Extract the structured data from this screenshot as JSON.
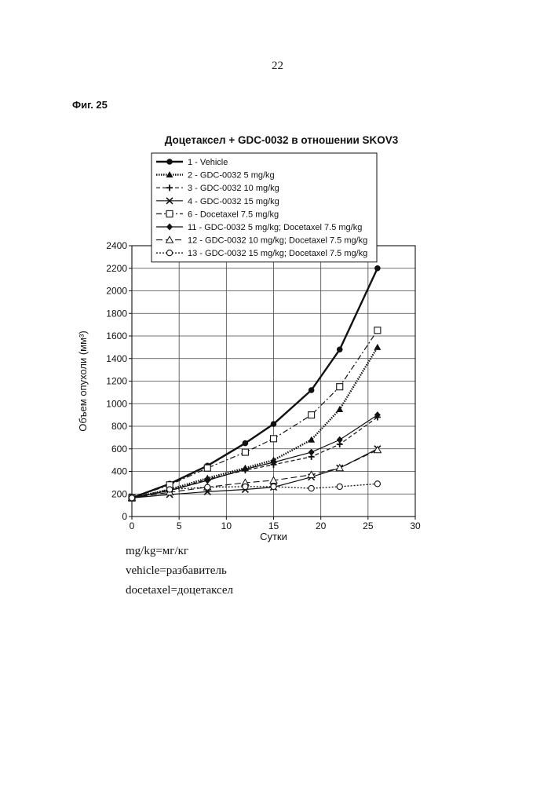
{
  "page_number": "22",
  "figure_label": "Фиг. 25",
  "notes": [
    "mg/kg=мг/кг",
    "vehicle=разбавитель",
    "docetaxel=доцетаксел"
  ],
  "chart_data": {
    "type": "line",
    "title": "Доцетаксел + GDC-0032 в отношении SKOV3",
    "xlabel": "Сутки",
    "ylabel": "Объем опухоли (мм³)",
    "xlim": [
      0,
      30
    ],
    "ylim": [
      0,
      2400
    ],
    "xticks": [
      0,
      5,
      10,
      15,
      20,
      25,
      30
    ],
    "yticks": [
      0,
      200,
      400,
      600,
      800,
      1000,
      1200,
      1400,
      1600,
      1800,
      2000,
      2200,
      2400
    ],
    "grid": true,
    "legend_position": "top",
    "series": [
      {
        "name": "1 - Vehicle",
        "marker": "filled-circle",
        "line": "solid-bold",
        "x": [
          0,
          4,
          8,
          12,
          15,
          19,
          22,
          26
        ],
        "y": [
          165,
          290,
          450,
          650,
          820,
          1120,
          1480,
          2200
        ]
      },
      {
        "name": "2 - GDC-0032 5 mg/kg",
        "marker": "filled-triangle",
        "line": "dotted-bold",
        "x": [
          0,
          4,
          8,
          12,
          15,
          19,
          22,
          26
        ],
        "y": [
          165,
          240,
          340,
          430,
          500,
          680,
          950,
          1500
        ]
      },
      {
        "name": "3 - GDC-0032 10 mg/kg",
        "marker": "plus",
        "line": "dashed",
        "x": [
          0,
          4,
          8,
          12,
          15,
          19,
          22,
          26
        ],
        "y": [
          165,
          230,
          330,
          410,
          460,
          530,
          640,
          880
        ]
      },
      {
        "name": "4 - GDC-0032 15 mg/kg",
        "marker": "x",
        "line": "solid",
        "x": [
          0,
          4,
          8,
          12,
          15,
          19,
          22,
          26
        ],
        "y": [
          165,
          195,
          220,
          240,
          260,
          350,
          430,
          600
        ]
      },
      {
        "name": "6 - Docetaxel 7.5 mg/kg",
        "marker": "open-square",
        "line": "dashdot",
        "x": [
          0,
          4,
          8,
          12,
          15,
          19,
          22,
          26
        ],
        "y": [
          165,
          280,
          430,
          570,
          690,
          900,
          1150,
          1650
        ]
      },
      {
        "name": "11 - GDC-0032 5 mg/kg; Docetaxel 7.5 mg/kg",
        "marker": "filled-diamond",
        "line": "solid",
        "x": [
          0,
          4,
          8,
          12,
          15,
          19,
          22,
          26
        ],
        "y": [
          165,
          230,
          320,
          420,
          480,
          570,
          680,
          900
        ]
      },
      {
        "name": "12 - GDC-0032 10 mg/kg; Docetaxel 7.5 mg/kg",
        "marker": "open-triangle",
        "line": "long-dashed",
        "x": [
          0,
          4,
          8,
          12,
          15,
          19,
          22,
          26
        ],
        "y": [
          165,
          215,
          260,
          300,
          320,
          370,
          430,
          590
        ]
      },
      {
        "name": "13 - GDC-0032 15 mg/kg; Docetaxel 7.5 mg/kg",
        "marker": "open-circle",
        "line": "dotted",
        "x": [
          0,
          4,
          8,
          12,
          15,
          19,
          22,
          26
        ],
        "y": [
          165,
          240,
          260,
          265,
          265,
          250,
          265,
          290
        ]
      }
    ]
  }
}
